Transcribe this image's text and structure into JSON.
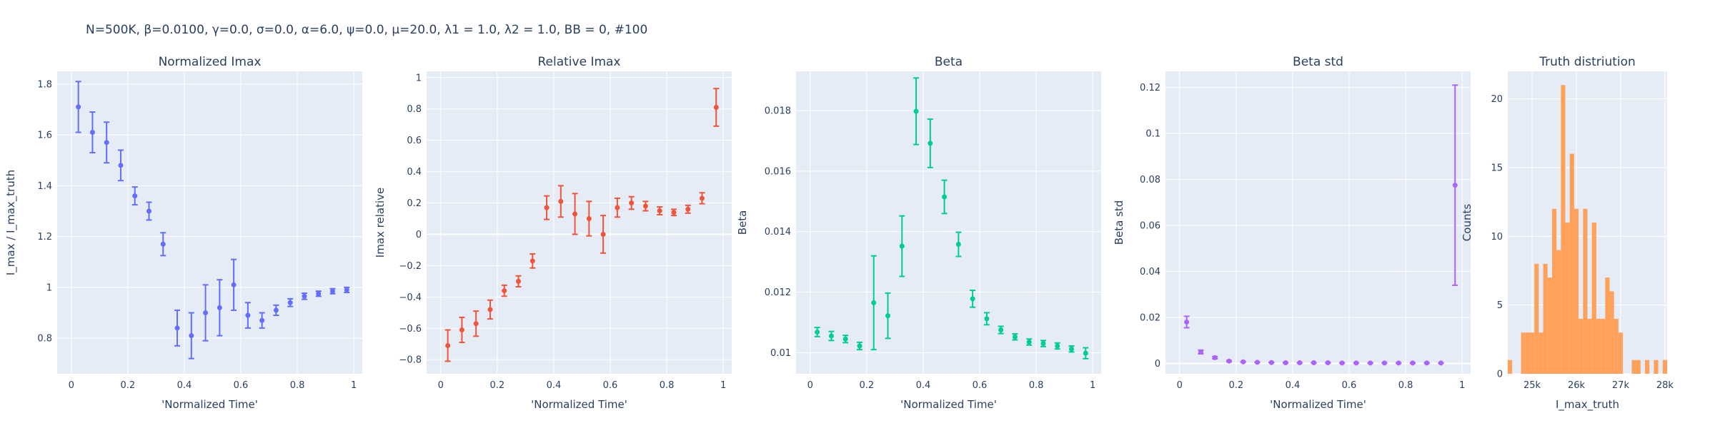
{
  "figure": {
    "title": "N=500K, β=0.0100, γ=0.0, σ=0.0,  α=6.0, ψ=0.0, μ=20.0, λ1 = 1.0, λ2 = 1.0, BB = 0, #100",
    "background": "#ffffff",
    "plot_background": "#e5ecf6",
    "grid_color": "#ffffff",
    "text_color": "#2a3f5f"
  },
  "chart_data": [
    {
      "type": "scatter",
      "error_bars": true,
      "title": "Normalized Imax",
      "xlabel": "'Normalized Time'",
      "ylabel": "I_max / I_max_truth",
      "color": "#636efa",
      "xlim": [
        -0.05,
        1.03
      ],
      "ylim": [
        0.66,
        1.85
      ],
      "xticks": [
        0,
        0.2,
        0.4,
        0.6,
        0.8,
        1
      ],
      "xticklabels": [
        "0",
        "0.2",
        "0.4",
        "0.6",
        "0.8",
        "1"
      ],
      "yticks": [
        0.8,
        1,
        1.2,
        1.4,
        1.6,
        1.8
      ],
      "yticklabels": [
        "0.8",
        "1",
        "1.2",
        "1.4",
        "1.6",
        "1.8"
      ],
      "x": [
        0.025,
        0.075,
        0.125,
        0.175,
        0.225,
        0.275,
        0.325,
        0.375,
        0.425,
        0.475,
        0.525,
        0.575,
        0.625,
        0.675,
        0.725,
        0.775,
        0.825,
        0.875,
        0.925,
        0.975
      ],
      "y": [
        1.71,
        1.61,
        1.57,
        1.48,
        1.36,
        1.3,
        1.17,
        0.84,
        0.81,
        0.9,
        0.92,
        1.01,
        0.89,
        0.87,
        0.91,
        0.94,
        0.965,
        0.975,
        0.985,
        0.99
      ],
      "err": [
        0.1,
        0.08,
        0.08,
        0.06,
        0.035,
        0.035,
        0.045,
        0.07,
        0.09,
        0.11,
        0.11,
        0.1,
        0.05,
        0.03,
        0.02,
        0.015,
        0.012,
        0.01,
        0.01,
        0.01
      ]
    },
    {
      "type": "scatter",
      "error_bars": true,
      "title": "Relative Imax",
      "xlabel": "'Normalized Time'",
      "ylabel": "Imax relative",
      "color": "#ef553b",
      "xlim": [
        -0.05,
        1.03
      ],
      "ylim": [
        -0.89,
        1.04
      ],
      "xticks": [
        0,
        0.2,
        0.4,
        0.6,
        0.8,
        1
      ],
      "xticklabels": [
        "0",
        "0.2",
        "0.4",
        "0.6",
        "0.8",
        "1"
      ],
      "yticks": [
        -0.8,
        -0.6,
        -0.4,
        -0.2,
        0,
        0.2,
        0.4,
        0.6,
        0.8,
        1
      ],
      "yticklabels": [
        "−0.8",
        "−0.6",
        "−0.4",
        "−0.2",
        "0",
        "0.2",
        "0.4",
        "0.6",
        "0.8",
        "1"
      ],
      "x": [
        0.025,
        0.075,
        0.125,
        0.175,
        0.225,
        0.275,
        0.325,
        0.375,
        0.425,
        0.475,
        0.525,
        0.575,
        0.625,
        0.675,
        0.725,
        0.775,
        0.825,
        0.875,
        0.925,
        0.975
      ],
      "y": [
        -0.71,
        -0.61,
        -0.57,
        -0.48,
        -0.36,
        -0.3,
        -0.17,
        0.17,
        0.21,
        0.13,
        0.1,
        0.0,
        0.17,
        0.2,
        0.18,
        0.15,
        0.14,
        0.16,
        0.23,
        0.81
      ],
      "err": [
        0.1,
        0.08,
        0.08,
        0.06,
        0.035,
        0.035,
        0.045,
        0.075,
        0.1,
        0.13,
        0.11,
        0.12,
        0.06,
        0.04,
        0.03,
        0.025,
        0.02,
        0.025,
        0.035,
        0.12
      ]
    },
    {
      "type": "scatter",
      "error_bars": true,
      "title": "Beta",
      "xlabel": "'Normalized Time'",
      "ylabel": "Beta",
      "color": "#00cc96",
      "xlim": [
        -0.05,
        1.03
      ],
      "ylim": [
        0.0093,
        0.0193
      ],
      "xticks": [
        0,
        0.2,
        0.4,
        0.6,
        0.8,
        1
      ],
      "xticklabels": [
        "0",
        "0.2",
        "0.4",
        "0.6",
        "0.8",
        "1"
      ],
      "yticks": [
        0.01,
        0.012,
        0.014,
        0.016,
        0.018
      ],
      "yticklabels": [
        "0.01",
        "0.012",
        "0.014",
        "0.016",
        "0.018"
      ],
      "x": [
        0.025,
        0.075,
        0.125,
        0.175,
        0.225,
        0.275,
        0.325,
        0.375,
        0.425,
        0.475,
        0.525,
        0.575,
        0.625,
        0.675,
        0.725,
        0.775,
        0.825,
        0.875,
        0.925,
        0.975
      ],
      "y": [
        0.01068,
        0.01055,
        0.01045,
        0.01022,
        0.01165,
        0.01122,
        0.01352,
        0.01798,
        0.01692,
        0.01515,
        0.01358,
        0.01178,
        0.01112,
        0.01075,
        0.01052,
        0.01035,
        0.0103,
        0.01022,
        0.01012,
        0.00998
      ],
      "err": [
        0.00015,
        0.00015,
        0.00012,
        0.00012,
        0.00155,
        0.00075,
        0.001,
        0.0011,
        0.0008,
        0.00055,
        0.0004,
        0.00028,
        0.0002,
        0.00012,
        0.0001,
        0.0001,
        0.0001,
        0.0001,
        0.0001,
        0.00018
      ]
    },
    {
      "type": "scatter",
      "error_bars": true,
      "title": "Beta std",
      "xlabel": "'Normalized Time'",
      "ylabel": "Beta std",
      "color": "#ab63fa",
      "xlim": [
        -0.05,
        1.03
      ],
      "ylim": [
        -0.0045,
        0.127
      ],
      "xticks": [
        0,
        0.2,
        0.4,
        0.6,
        0.8,
        1
      ],
      "xticklabels": [
        "0",
        "0.2",
        "0.4",
        "0.6",
        "0.8",
        "1"
      ],
      "yticks": [
        0,
        0.02,
        0.04,
        0.06,
        0.08,
        0.1,
        0.12
      ],
      "yticklabels": [
        "0",
        "0.02",
        "0.04",
        "0.06",
        "0.08",
        "0.1",
        "0.12"
      ],
      "x": [
        0.025,
        0.075,
        0.125,
        0.175,
        0.225,
        0.275,
        0.325,
        0.375,
        0.425,
        0.475,
        0.525,
        0.575,
        0.625,
        0.675,
        0.725,
        0.775,
        0.825,
        0.875,
        0.925,
        0.975
      ],
      "y": [
        0.018,
        0.005,
        0.0025,
        0.001,
        0.0007,
        0.0005,
        0.0004,
        0.0003,
        0.0003,
        0.0003,
        0.0003,
        0.0002,
        0.0002,
        0.0002,
        0.0002,
        0.0002,
        0.0002,
        0.0002,
        0.0002,
        0.0775
      ],
      "err": [
        0.0025,
        0.0008,
        0.0005,
        0.0002,
        0.0001,
        0.0001,
        0.0001,
        0.0001,
        0.0001,
        0.0001,
        0.0001,
        0.0001,
        0.0001,
        0.0001,
        0.0001,
        0.0001,
        0.0001,
        0.0001,
        0.0001,
        0.0435
      ]
    },
    {
      "type": "bar",
      "histogram": true,
      "title": "Truth distriution",
      "xlabel": "I_max_truth",
      "ylabel": "Counts",
      "color": "#ffa15a",
      "xlim": [
        24450,
        28050
      ],
      "ylim": [
        0,
        22
      ],
      "bin_width": 100,
      "xticks": [
        25000,
        26000,
        27000,
        28000
      ],
      "xticklabels": [
        "25k",
        "26k",
        "27k",
        "28k"
      ],
      "yticks": [
        0,
        5,
        10,
        15,
        20
      ],
      "yticklabels": [
        "0",
        "5",
        "10",
        "15",
        "20"
      ],
      "bin_starts": [
        24450,
        24750,
        24850,
        24950,
        25050,
        25150,
        25250,
        25350,
        25450,
        25550,
        25650,
        25750,
        25850,
        25950,
        26050,
        26150,
        26250,
        26350,
        26450,
        26550,
        26650,
        26750,
        26850,
        26950,
        27250,
        27350,
        27550,
        27750,
        27950
      ],
      "values": [
        1,
        3,
        3,
        3,
        8,
        3,
        8,
        7,
        12,
        9,
        21,
        11,
        16,
        12,
        4,
        12,
        4,
        11,
        4,
        4,
        7,
        6,
        4,
        3,
        1,
        1,
        1,
        1,
        1
      ]
    }
  ]
}
